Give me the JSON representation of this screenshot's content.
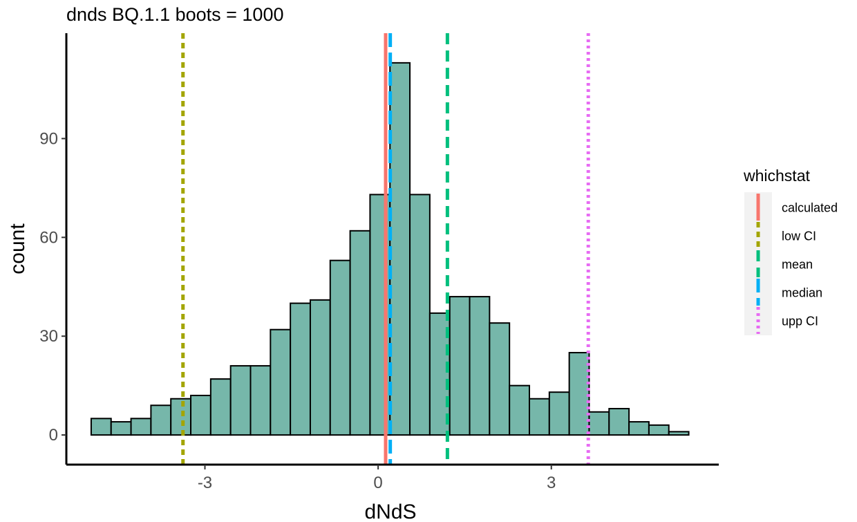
{
  "chart_data": {
    "type": "histogram",
    "title": "dnds BQ.1.1 boots = 1000",
    "xlabel": "dNdS",
    "ylabel": "count",
    "xlim": [
      -5.4,
      5.9
    ],
    "ylim": [
      -9,
      122
    ],
    "x_ticks": [
      -3,
      0,
      3
    ],
    "x_tick_labels": [
      "-3",
      "0",
      "3"
    ],
    "y_ticks": [
      0,
      30,
      60,
      90
    ],
    "y_tick_labels": [
      "0",
      "30",
      "60",
      "90"
    ],
    "bin_start": -4.97,
    "bin_width": 0.345,
    "values": [
      5,
      4,
      5,
      9,
      11,
      12,
      17,
      21,
      21,
      32,
      40,
      41,
      53,
      62,
      73,
      113,
      73,
      37,
      42,
      42,
      34,
      15,
      11,
      13,
      25,
      7,
      8,
      4,
      3,
      1
    ],
    "bar_fill": "#76b7aa",
    "bar_stroke": "#000000",
    "grid": false,
    "legend_position": "right",
    "legend_title": "whichstat",
    "stats": [
      {
        "name": "calculated",
        "x": 0.13,
        "color": "#f8766d",
        "linetype": "solid"
      },
      {
        "name": "low CI",
        "x": -3.38,
        "color": "#a3a500",
        "linetype": "dashed-short"
      },
      {
        "name": "mean",
        "x": 1.2,
        "color": "#00bf7d",
        "linetype": "dashed"
      },
      {
        "name": "median",
        "x": 0.21,
        "color": "#00b0f6",
        "linetype": "longdash"
      },
      {
        "name": "upp CI",
        "x": 3.64,
        "color": "#e76bf3",
        "linetype": "dotted"
      }
    ]
  }
}
